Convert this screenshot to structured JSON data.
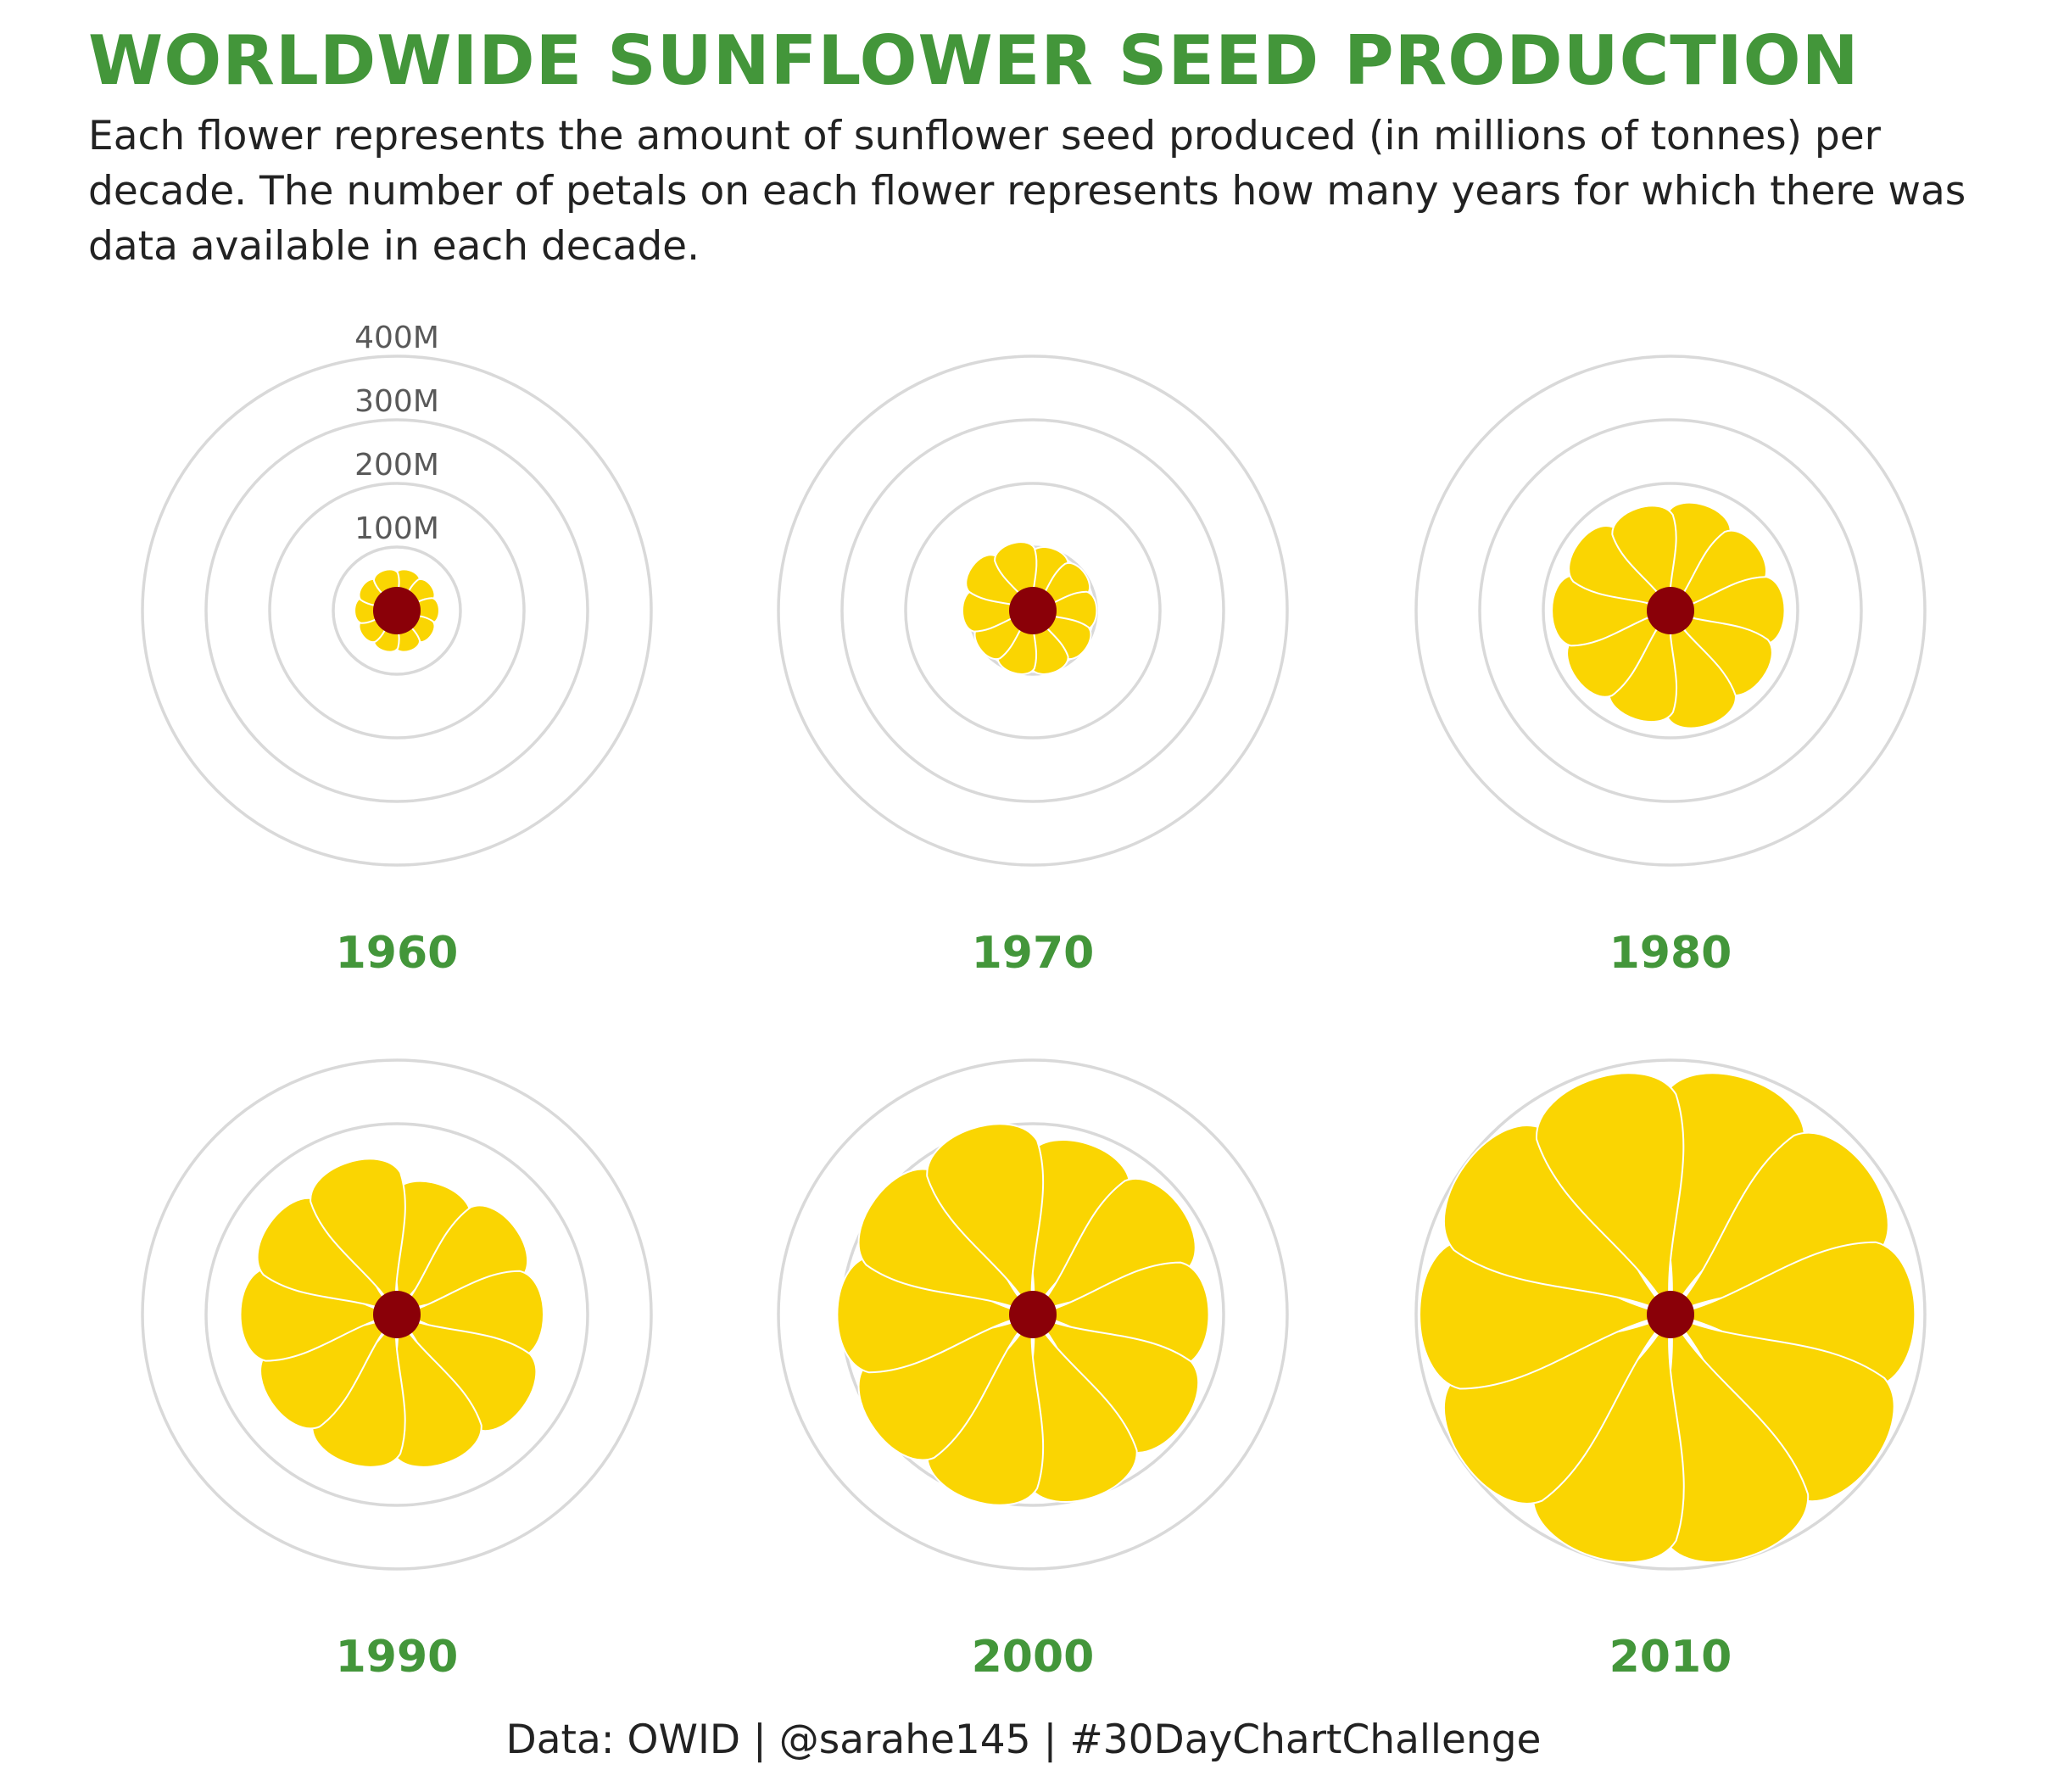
{
  "title": "WORLDWIDE SUNFLOWER SEED PRODUCTION",
  "subtitle": "Each flower represents the amount of sunflower seed produced (in millions of tonnes) per decade. The number of petals on each flower represents how many years for which there was data available in each decade.",
  "caption": "Data: OWID | @sarahe145 | #30DayChartChallenge",
  "colors": {
    "title": "#43963a",
    "grid": "#d9d9d9",
    "petal": "#fad502",
    "center": "#8a0008",
    "axis_label": "#595959",
    "text": "#222222"
  },
  "chart_data": {
    "type": "polar-bar",
    "value_unit": "millions of tonnes",
    "ring_labels": [
      "100M",
      "200M",
      "300M",
      "400M"
    ],
    "rlim": [
      0,
      400
    ],
    "grid": true,
    "panels": [
      {
        "decade": "1960",
        "values": [
          65,
          65,
          65,
          65,
          65,
          65,
          65,
          65,
          65,
          65
        ]
      },
      {
        "decade": "1970",
        "values": [
          100,
          98,
          98,
          100,
          100,
          100,
          100,
          108,
          115,
          108
        ]
      },
      {
        "decade": "1980",
        "values": [
          170,
          165,
          175,
          175,
          185,
          175,
          178,
          182,
          175,
          165
        ]
      },
      {
        "decade": "1990",
        "values": [
          210,
          225,
          225,
          240,
          240,
          240,
          235,
          240,
          240,
          245
        ]
      },
      {
        "decade": "2000",
        "values": [
          275,
          280,
          270,
          285,
          295,
          300,
          300,
          300,
          300,
          300
        ]
      },
      {
        "decade": "2010",
        "values": [
          380,
          375,
          375,
          385,
          390,
          390,
          390,
          385,
          390,
          380
        ]
      }
    ]
  }
}
